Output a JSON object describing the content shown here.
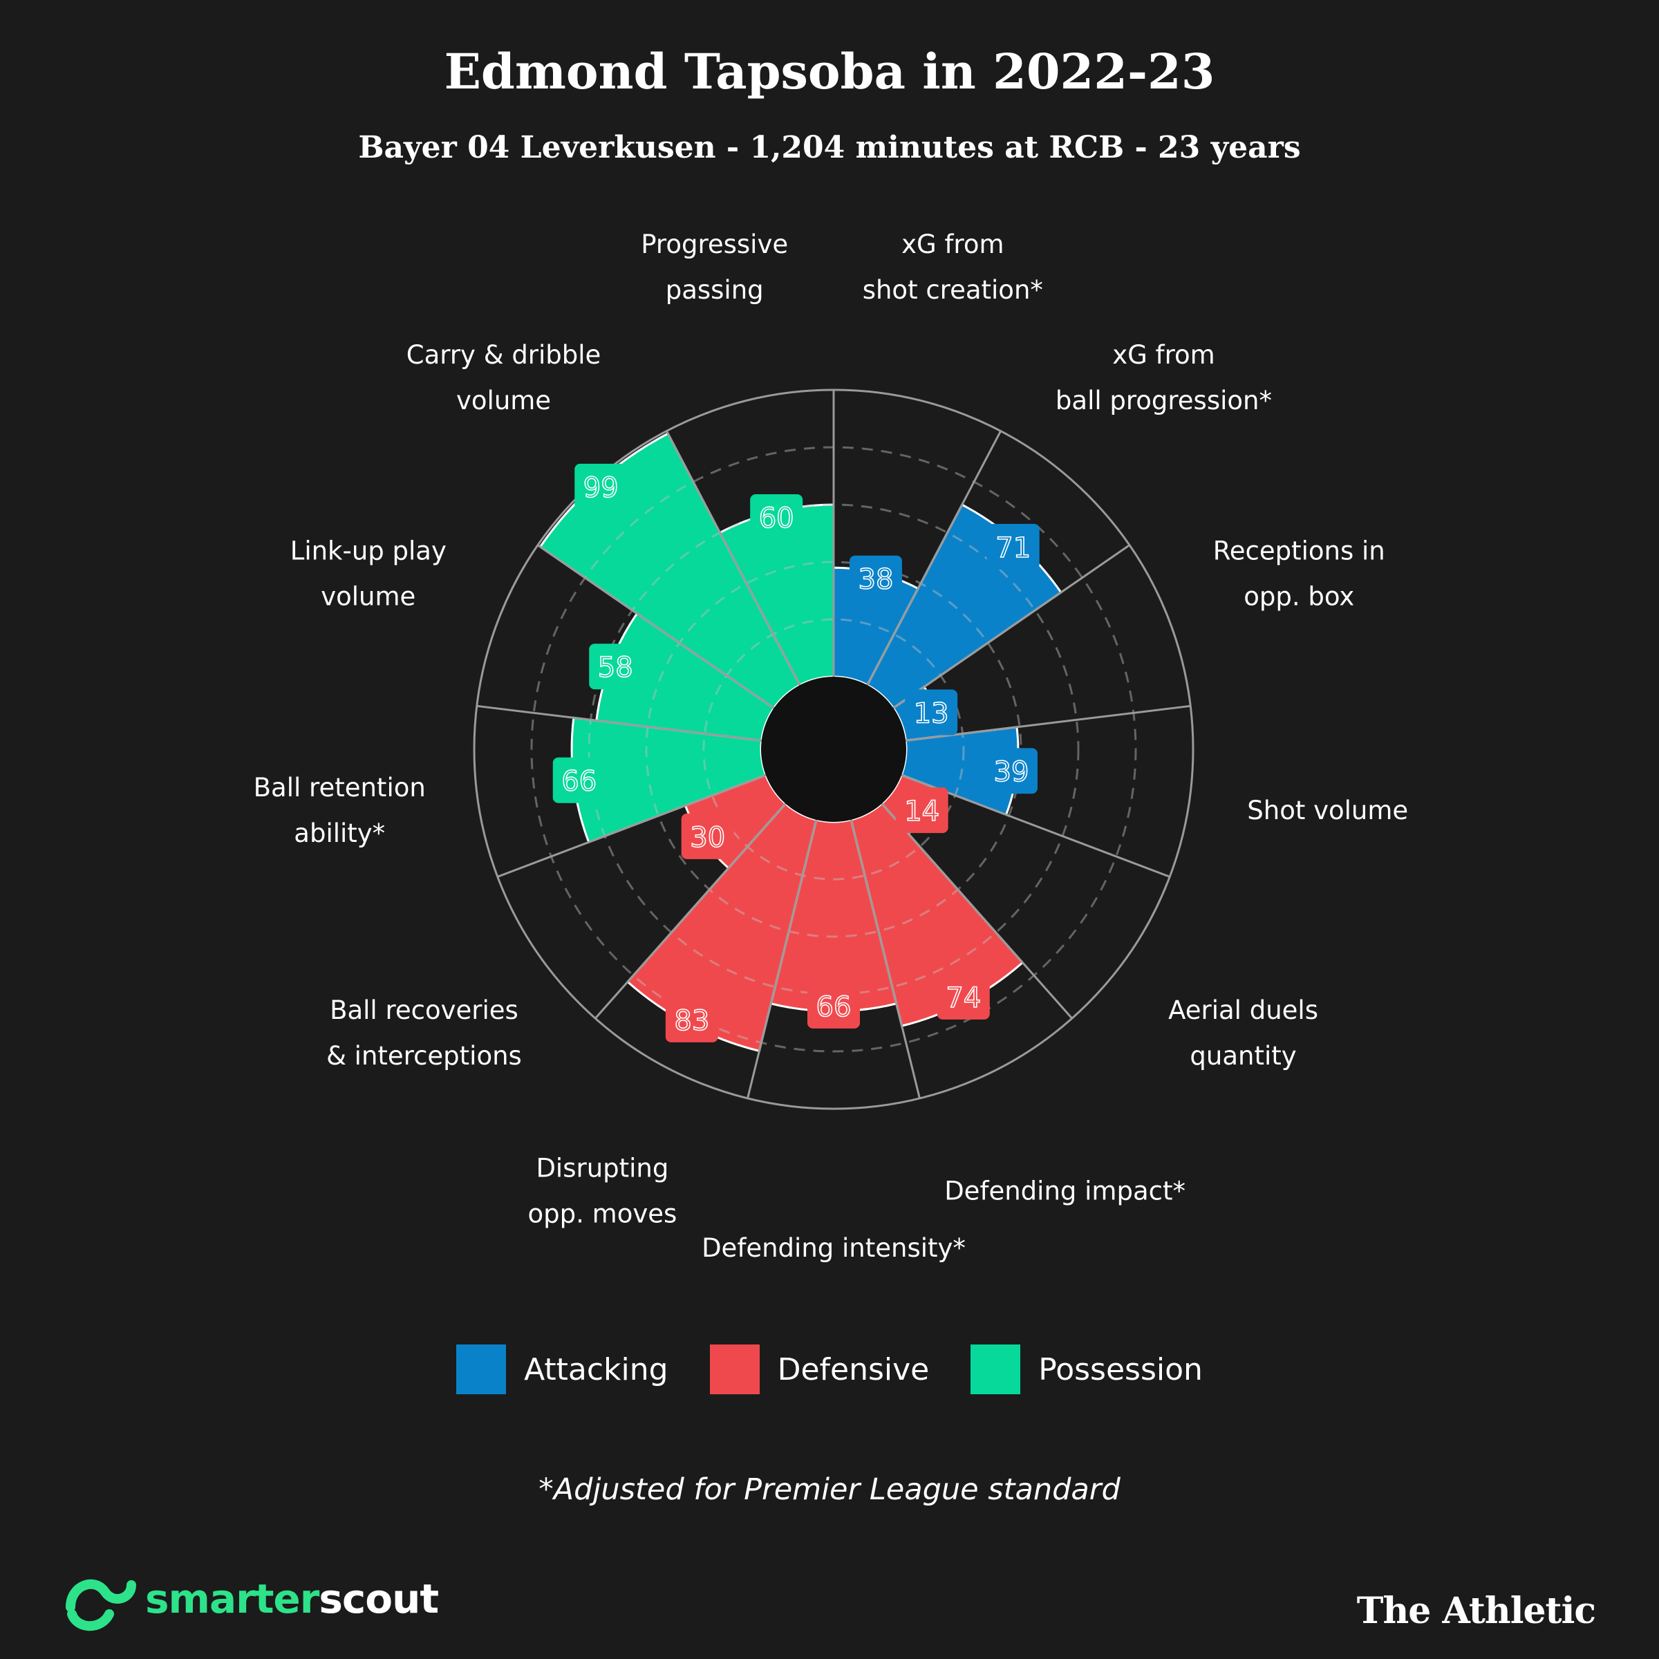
{
  "title": "Edmond Tapsoba in 2022-23",
  "subtitle": "Bayer 04 Leverkusen - 1,204 minutes at RCB - 23 years",
  "footnote": "*Adjusted for Premier League standard",
  "logos": {
    "left": "smarterscout",
    "left_part_a": "smarter",
    "left_part_b": "scout",
    "right": "The Athletic"
  },
  "colors": {
    "Attacking": "#0a82c9",
    "Defensive": "#f0494d",
    "Possession": "#06d99a",
    "background": "#1b1b1b"
  },
  "legend": [
    {
      "label": "Attacking",
      "color": "#0a82c9"
    },
    {
      "label": "Defensive",
      "color": "#f0494d"
    },
    {
      "label": "Possession",
      "color": "#06d99a"
    }
  ],
  "chart_data": {
    "type": "polar-bar",
    "title": "Edmond Tapsoba in 2022-23",
    "rlim": [
      0,
      100
    ],
    "grid": "dashed rings at 20, 40, 60, 80",
    "legend_position": "bottom",
    "categories": [
      {
        "label": [
          "xG from",
          "shot creation*"
        ],
        "value": 38,
        "group": "Attacking"
      },
      {
        "label": [
          "xG from",
          "ball progression*"
        ],
        "value": 71,
        "group": "Attacking"
      },
      {
        "label": [
          "Receptions in",
          "opp. box"
        ],
        "value": 13,
        "group": "Attacking"
      },
      {
        "label": [
          "Shot volume"
        ],
        "value": 39,
        "group": "Attacking"
      },
      {
        "label": [
          "Aerial duels",
          "quantity"
        ],
        "value": 14,
        "group": "Defensive"
      },
      {
        "label": [
          "Defending impact*"
        ],
        "value": 74,
        "group": "Defensive"
      },
      {
        "label": [
          "Defending intensity*"
        ],
        "value": 66,
        "group": "Defensive"
      },
      {
        "label": [
          "Disrupting",
          "opp. moves"
        ],
        "value": 83,
        "group": "Defensive"
      },
      {
        "label": [
          "Ball recoveries",
          "& interceptions"
        ],
        "value": 30,
        "group": "Defensive"
      },
      {
        "label": [
          "Ball retention",
          "ability*"
        ],
        "value": 66,
        "group": "Possession"
      },
      {
        "label": [
          "Link-up play",
          "volume"
        ],
        "value": 58,
        "group": "Possession"
      },
      {
        "label": [
          "Carry & dribble",
          "volume"
        ],
        "value": 99,
        "group": "Possession"
      },
      {
        "label": [
          "Progressive",
          "passing"
        ],
        "value": 60,
        "group": "Possession"
      }
    ]
  }
}
